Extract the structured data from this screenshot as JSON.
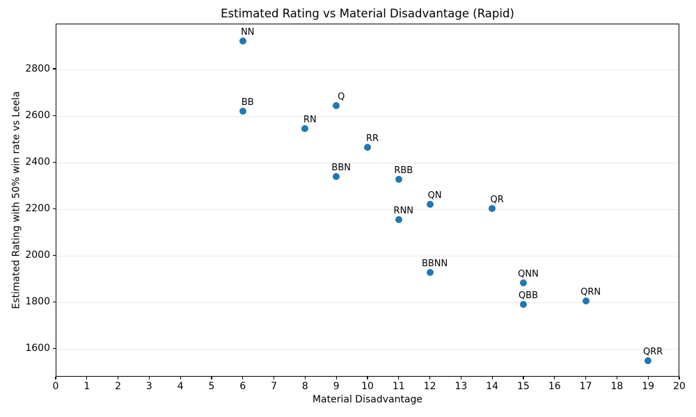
{
  "chart_data": {
    "type": "scatter",
    "title": "Estimated Rating vs Material Disadvantage (Rapid)",
    "xlabel": "Material Disadvantage",
    "ylabel": "Estimated Rating with 50% win rate vs Leela",
    "xlim": [
      0,
      20
    ],
    "ylim": [
      1479,
      2994
    ],
    "xticks": [
      0,
      1,
      2,
      3,
      4,
      5,
      6,
      7,
      8,
      9,
      10,
      11,
      12,
      13,
      14,
      15,
      16,
      17,
      18,
      19,
      20
    ],
    "yticks": [
      1600,
      1800,
      2000,
      2200,
      2400,
      2600,
      2800
    ],
    "grid": "horizontal",
    "legend": "none",
    "marker_color": "#1f77b4",
    "points": [
      {
        "label": "NN",
        "x": 6,
        "y": 2920
      },
      {
        "label": "Q",
        "x": 9,
        "y": 2641
      },
      {
        "label": "BB",
        "x": 6,
        "y": 2618
      },
      {
        "label": "RN",
        "x": 8,
        "y": 2543
      },
      {
        "label": "RR",
        "x": 10,
        "y": 2463
      },
      {
        "label": "BBN",
        "x": 9,
        "y": 2339
      },
      {
        "label": "RBB",
        "x": 11,
        "y": 2327
      },
      {
        "label": "QN",
        "x": 12,
        "y": 2220
      },
      {
        "label": "QR",
        "x": 14,
        "y": 2200
      },
      {
        "label": "RNN",
        "x": 11,
        "y": 2152
      },
      {
        "label": "BBNN",
        "x": 12,
        "y": 1926
      },
      {
        "label": "QNN",
        "x": 15,
        "y": 1883
      },
      {
        "label": "QRN",
        "x": 17,
        "y": 1803
      },
      {
        "label": "QBB",
        "x": 15,
        "y": 1788
      },
      {
        "label": "QRR",
        "x": 19,
        "y": 1548
      }
    ]
  }
}
